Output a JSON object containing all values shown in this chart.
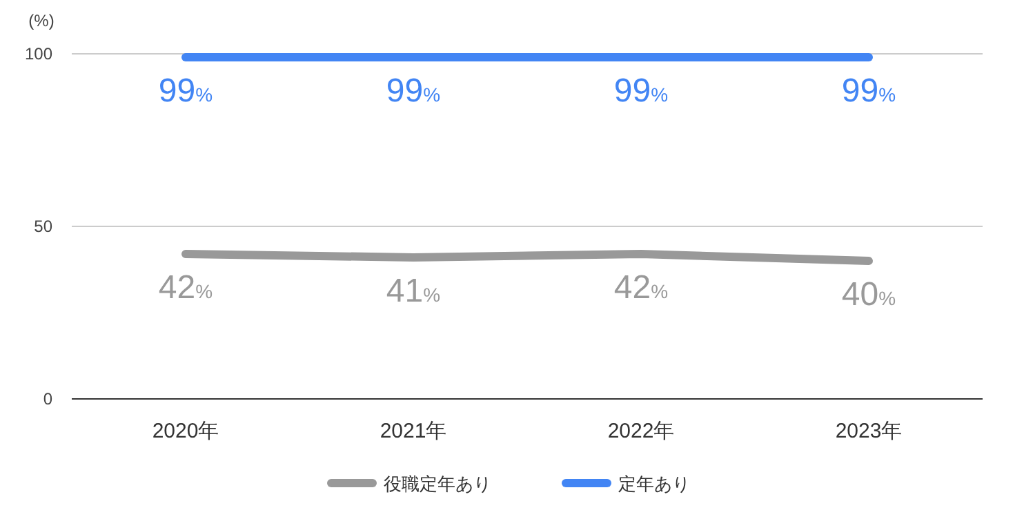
{
  "chart_data": {
    "type": "line",
    "ylabel": "(%)",
    "categories": [
      "2020年",
      "2021年",
      "2022年",
      "2023年"
    ],
    "series": [
      {
        "name": "役職定年あり",
        "color": "#999999",
        "values": [
          42,
          41,
          42,
          40
        ],
        "value_labels": [
          "42%",
          "41%",
          "42%",
          "40%"
        ]
      },
      {
        "name": "定年あり",
        "color": "#4285f4",
        "values": [
          99,
          99,
          99,
          99
        ],
        "value_labels": [
          "99%",
          "99%",
          "99%",
          "99%"
        ]
      }
    ],
    "ylim": [
      0,
      100
    ],
    "yticks": [
      0,
      50,
      100
    ],
    "grid": "y",
    "legend": "bottom",
    "marker": "none",
    "line_style": "solid"
  }
}
